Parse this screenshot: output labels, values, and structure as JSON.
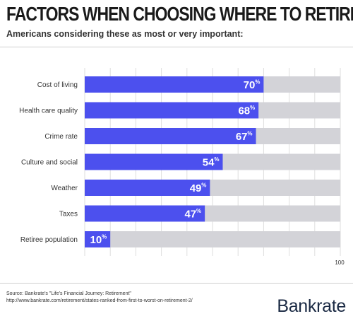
{
  "header": {
    "title": "FACTORS WHEN CHOOSING WHERE TO RETIRE",
    "subtitle": "Americans considering these as most or very important:"
  },
  "colors": {
    "bar": "#4c50ee",
    "track": "#d3d3d8",
    "title": "#1a1a1a",
    "brand": "#1b2a44"
  },
  "chart_data": {
    "type": "bar",
    "orientation": "horizontal",
    "categories": [
      "Cost of living",
      "Health care quality",
      "Crime rate",
      "Culture and social",
      "Weather",
      "Taxes",
      "Retiree population"
    ],
    "values": [
      70,
      68,
      67,
      54,
      49,
      47,
      10
    ],
    "value_suffix": "%",
    "xlim": [
      0,
      100
    ],
    "x_tick_labels": [
      "100"
    ],
    "grid": true,
    "title": "FACTORS WHEN CHOOSING WHERE TO RETIRE",
    "subtitle": "Americans considering these as most or very important:"
  },
  "footer": {
    "source_line": "Source: Bankrate's \"Life's Financial Journey: Retirement\"",
    "source_url": "http://www.bankrate.com/retirement/states-ranked-from-first-to-worst-on-retirement-2/",
    "brand": "Bankrate"
  }
}
